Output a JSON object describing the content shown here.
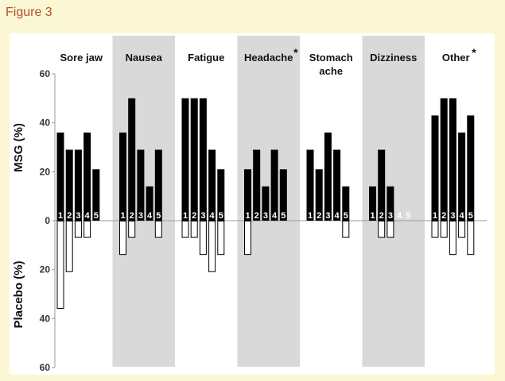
{
  "figure_label": "Figure 3",
  "chart_data": {
    "type": "bar",
    "title": "",
    "y_label_top": "MSG (%)",
    "y_label_bottom": "Placebo (%)",
    "y_ticks_top": [
      0,
      20,
      40,
      60
    ],
    "y_ticks_bottom": [
      0,
      20,
      40,
      60
    ],
    "ylim_top": [
      0,
      60
    ],
    "ylim_bottom": [
      0,
      60
    ],
    "grid": false,
    "groups": [
      {
        "name": "Sore jaw",
        "asterisk": false,
        "shaded": false,
        "msg": [
          36,
          29,
          29,
          36,
          21
        ],
        "placebo": [
          36,
          21,
          7,
          7,
          0
        ]
      },
      {
        "name": "Nausea",
        "asterisk": false,
        "shaded": true,
        "msg": [
          36,
          50,
          29,
          14,
          29
        ],
        "placebo": [
          14,
          7,
          0,
          0,
          7
        ]
      },
      {
        "name": "Fatigue",
        "asterisk": false,
        "shaded": false,
        "msg": [
          50,
          50,
          50,
          29,
          21
        ],
        "placebo": [
          7,
          7,
          14,
          21,
          14
        ]
      },
      {
        "name": "Headache",
        "asterisk": true,
        "shaded": true,
        "msg": [
          21,
          29,
          14,
          29,
          21
        ],
        "placebo": [
          14,
          0,
          0,
          0,
          0
        ]
      },
      {
        "name": "Stomach ache",
        "name_lines": [
          "Stomach",
          "ache"
        ],
        "asterisk": false,
        "shaded": false,
        "msg": [
          29,
          21,
          36,
          29,
          14
        ],
        "placebo": [
          0,
          0,
          0,
          0,
          7
        ]
      },
      {
        "name": "Dizziness",
        "asterisk": false,
        "shaded": true,
        "msg": [
          14,
          29,
          14,
          0,
          0
        ],
        "placebo": [
          0,
          7,
          7,
          0,
          0
        ]
      },
      {
        "name": "Other",
        "asterisk": true,
        "shaded": false,
        "msg": [
          43,
          50,
          50,
          36,
          43
        ],
        "placebo": [
          7,
          7,
          14,
          7,
          14
        ]
      }
    ],
    "dose_labels": [
      "1",
      "2",
      "3",
      "4",
      "5"
    ],
    "asterisk_symbol": "*",
    "colors": {
      "msg_bar": "#000000",
      "placebo_bar": "#ffffff",
      "placebo_stroke": "#000000",
      "shade": "#d9d9d9",
      "axis": "#9a9a9a",
      "caption": "#b5502a",
      "background": "#fbf7d5"
    }
  }
}
